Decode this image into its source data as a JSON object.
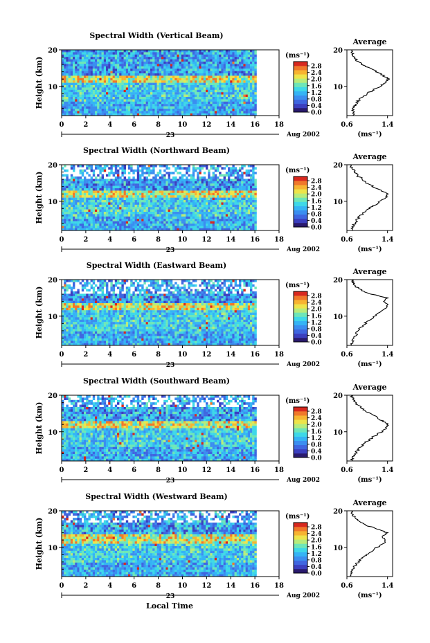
{
  "figure": {
    "xlabel": "Local Time",
    "ylabel": "Height (km)",
    "date_day": "23",
    "date_month": "Aug 2002",
    "unit_label": "(ms⁻¹)",
    "avg_title": "Average",
    "avg_xlabel": "(ms⁻¹)"
  },
  "colors": {
    "scale": [
      "#2a1a6e",
      "#3b3fbf",
      "#3f66e0",
      "#3b8ef0",
      "#35b4f5",
      "#3ed8e8",
      "#6ee6b8",
      "#b7ec7c",
      "#eee44a",
      "#f7b431",
      "#f0782a",
      "#d8281e"
    ],
    "background": "#ffffff"
  },
  "chart_data": [
    {
      "type": "heatmap",
      "title": "Spectral Width (Vertical Beam)",
      "x_range": [
        0,
        18
      ],
      "y_range": [
        2,
        20
      ],
      "x_ticks": [
        0,
        2,
        4,
        6,
        8,
        10,
        12,
        14,
        16,
        18
      ],
      "y_ticks": [
        10,
        20
      ],
      "colorbar": {
        "ticks": [
          "0.0",
          "0.4",
          "0.8",
          "1.2",
          "1.6",
          "2.0",
          "2.4",
          "2.8"
        ],
        "range": [
          0,
          2.8
        ]
      },
      "data_end_hour": 16,
      "gap_top_km": 20,
      "enhanced_layer_km": [
        11,
        13
      ],
      "average_profile": {
        "x_ticks": [
          0.6,
          1.4
        ],
        "x_range": [
          0.6,
          1.5
        ],
        "y_range": [
          2,
          20
        ],
        "height_km": [
          2,
          3,
          4,
          5,
          6,
          7,
          8,
          9,
          10,
          11,
          12,
          13,
          14,
          15,
          16,
          17,
          18,
          19,
          20
        ],
        "width": [
          0.72,
          0.74,
          0.7,
          0.78,
          0.82,
          0.9,
          1.0,
          1.12,
          1.25,
          1.36,
          1.42,
          1.32,
          1.18,
          1.05,
          0.9,
          0.8,
          0.74,
          0.7,
          0.68
        ]
      }
    },
    {
      "type": "heatmap",
      "title": "Spectral Width (Northward Beam)",
      "x_range": [
        0,
        18
      ],
      "y_range": [
        2,
        20
      ],
      "x_ticks": [
        0,
        2,
        4,
        6,
        8,
        10,
        12,
        14,
        16,
        18
      ],
      "y_ticks": [
        10,
        20
      ],
      "colorbar": {
        "ticks": [
          "0.0",
          "0.4",
          "0.8",
          "1.2",
          "1.6",
          "2.0",
          "2.4",
          "2.8"
        ],
        "range": [
          0,
          2.8
        ]
      },
      "data_end_hour": 16,
      "gap_top_km": 16.5,
      "enhanced_layer_km": [
        11,
        13
      ],
      "average_profile": {
        "x_ticks": [
          0.6,
          1.4
        ],
        "x_range": [
          0.6,
          1.5
        ],
        "y_range": [
          2,
          20
        ],
        "height_km": [
          2,
          3,
          4,
          5,
          6,
          7,
          8,
          9,
          10,
          11,
          12,
          13,
          14,
          15,
          16,
          17,
          18,
          19,
          20
        ],
        "width": [
          0.7,
          0.72,
          0.76,
          0.8,
          0.86,
          0.94,
          1.04,
          1.15,
          1.26,
          1.36,
          1.4,
          1.28,
          1.12,
          0.98,
          0.92,
          0.8,
          0.76,
          0.7,
          0.66
        ]
      }
    },
    {
      "type": "heatmap",
      "title": "Spectral Width (Eastward Beam)",
      "x_range": [
        0,
        18
      ],
      "y_range": [
        2,
        20
      ],
      "x_ticks": [
        0,
        2,
        4,
        6,
        8,
        10,
        12,
        14,
        16,
        18
      ],
      "y_ticks": [
        10,
        20
      ],
      "colorbar": {
        "ticks": [
          "0.0",
          "0.4",
          "0.8",
          "1.2",
          "1.6",
          "2.0",
          "2.4",
          "2.8"
        ],
        "range": [
          0,
          2.8
        ]
      },
      "data_end_hour": 16,
      "gap_top_km": 16.5,
      "enhanced_layer_km": [
        12,
        14
      ],
      "average_profile": {
        "x_ticks": [
          0.6,
          1.4
        ],
        "x_range": [
          0.6,
          1.5
        ],
        "y_range": [
          2,
          20
        ],
        "height_km": [
          2,
          3,
          4,
          5,
          6,
          7,
          8,
          9,
          10,
          11,
          12,
          13,
          14,
          15,
          16,
          17,
          18,
          19,
          20
        ],
        "width": [
          0.68,
          0.7,
          0.74,
          0.78,
          0.82,
          0.88,
          0.96,
          1.04,
          1.14,
          1.24,
          1.34,
          1.42,
          1.3,
          1.38,
          1.1,
          0.9,
          0.78,
          0.72,
          0.7
        ]
      }
    },
    {
      "type": "heatmap",
      "title": "Spectral Width (Southward Beam)",
      "x_range": [
        0,
        18
      ],
      "y_range": [
        2,
        20
      ],
      "x_ticks": [
        0,
        2,
        4,
        6,
        8,
        10,
        12,
        14,
        16,
        18
      ],
      "y_ticks": [
        10,
        20
      ],
      "colorbar": {
        "ticks": [
          "0.0",
          "0.4",
          "0.8",
          "1.2",
          "1.6",
          "2.0",
          "2.4",
          "2.8"
        ],
        "range": [
          0,
          2.8
        ]
      },
      "data_end_hour": 16,
      "gap_top_km": 17,
      "enhanced_layer_km": [
        11,
        13
      ],
      "average_profile": {
        "x_ticks": [
          0.6,
          1.4
        ],
        "x_range": [
          0.6,
          1.5
        ],
        "y_range": [
          2,
          20
        ],
        "height_km": [
          2,
          3,
          4,
          5,
          6,
          7,
          8,
          9,
          10,
          11,
          12,
          13,
          14,
          15,
          16,
          17,
          18,
          19,
          20
        ],
        "width": [
          0.7,
          0.72,
          0.76,
          0.82,
          0.88,
          0.96,
          1.06,
          1.16,
          1.28,
          1.38,
          1.4,
          1.3,
          1.18,
          1.06,
          0.94,
          0.84,
          0.76,
          0.72,
          0.68
        ]
      }
    },
    {
      "type": "heatmap",
      "title": "Spectral Width (Westward Beam)",
      "x_range": [
        0,
        18
      ],
      "y_range": [
        2,
        20
      ],
      "x_ticks": [
        0,
        2,
        4,
        6,
        8,
        10,
        12,
        14,
        16,
        18
      ],
      "y_ticks": [
        10,
        20
      ],
      "colorbar": {
        "ticks": [
          "0.0",
          "0.4",
          "0.8",
          "1.2",
          "1.6",
          "2.0",
          "2.4",
          "2.8"
        ],
        "range": [
          0,
          2.8
        ]
      },
      "data_end_hour": 16,
      "gap_top_km": 17,
      "enhanced_layer_km": [
        11,
        14
      ],
      "average_profile": {
        "x_ticks": [
          0.6,
          1.4
        ],
        "x_range": [
          0.6,
          1.5
        ],
        "y_range": [
          2,
          20
        ],
        "height_km": [
          2,
          3,
          4,
          5,
          6,
          7,
          8,
          9,
          10,
          11,
          12,
          13,
          14,
          15,
          16,
          17,
          18,
          19,
          20
        ],
        "width": [
          0.66,
          0.68,
          0.72,
          0.76,
          0.82,
          0.9,
          0.98,
          1.08,
          1.2,
          1.32,
          1.38,
          1.3,
          1.4,
          1.2,
          1.0,
          0.86,
          0.76,
          0.7,
          0.68
        ]
      }
    }
  ]
}
